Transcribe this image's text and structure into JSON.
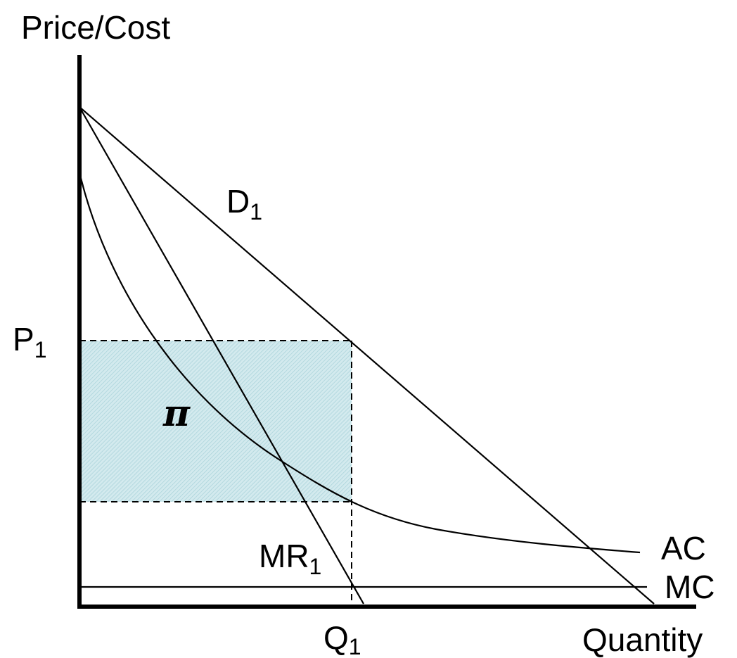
{
  "axes": {
    "y_label": "Price/Cost",
    "x_label": "Quantity"
  },
  "labels": {
    "demand": {
      "text": "D",
      "sub": "1"
    },
    "marginal_revenue": {
      "text": "MR",
      "sub": "1"
    },
    "price": {
      "text": "P",
      "sub": "1"
    },
    "quantity": {
      "text": "Q",
      "sub": "1"
    },
    "average_cost": {
      "text": "AC"
    },
    "marginal_cost": {
      "text": "MC"
    },
    "profit": {
      "text": "π"
    }
  }
}
